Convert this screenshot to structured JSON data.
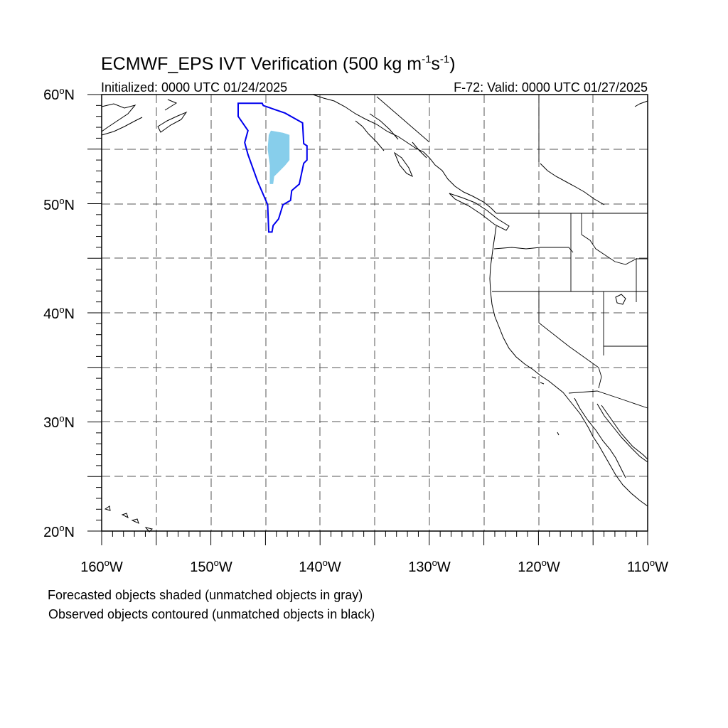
{
  "title": {
    "prefix": "ECMWF_EPS IVT Verification (500 kg m",
    "exp1": "-1",
    "middle": "s",
    "exp2": "-1",
    "suffix": ")"
  },
  "subtitle_left": "Initialized: 0000 UTC 01/24/2025",
  "subtitle_right": "F-72: Valid: 0000 UTC 01/27/2025",
  "lat_labels": [
    "60",
    "50",
    "40",
    "30",
    "20"
  ],
  "lat_suffix": "N",
  "lon_labels": [
    "160",
    "150",
    "140",
    "130",
    "120",
    "110"
  ],
  "lon_suffix": "W",
  "degree_symbol": "o",
  "caption_line1": "Forecasted objects shaded (unmatched objects in gray)",
  "caption_line2": "Observed objects contoured (unmatched objects in black)",
  "map_extent": {
    "lon": [
      -160,
      -110
    ],
    "lat": [
      20,
      60
    ],
    "grid_spacing_deg": 5
  },
  "colors": {
    "forecast_object_matched": "#87ceeb",
    "observed_object_matched": "#0000ee",
    "coastline": "#000000",
    "grid": "#555555"
  },
  "observed_object": {
    "status": "matched",
    "outline_lonlat": [
      [
        -147.5,
        59.2
      ],
      [
        -145.3,
        59.2
      ],
      [
        -145.2,
        59.0
      ],
      [
        -143.2,
        58.3
      ],
      [
        -141.6,
        57.4
      ],
      [
        -141.5,
        55.5
      ],
      [
        -141.2,
        55.3
      ],
      [
        -141.2,
        54.0
      ],
      [
        -141.5,
        53.7
      ],
      [
        -141.9,
        51.8
      ],
      [
        -142.6,
        51.2
      ],
      [
        -142.7,
        50.3
      ],
      [
        -143.4,
        49.9
      ],
      [
        -143.8,
        48.6
      ],
      [
        -144.3,
        48.0
      ],
      [
        -144.4,
        47.4
      ],
      [
        -144.7,
        47.4
      ],
      [
        -144.8,
        49.9
      ],
      [
        -145.7,
        52.0
      ],
      [
        -146.6,
        54.5
      ],
      [
        -146.9,
        55.6
      ],
      [
        -146.6,
        56.7
      ],
      [
        -147.5,
        58.0
      ],
      [
        -147.5,
        59.2
      ]
    ]
  },
  "forecast_object": {
    "status": "matched",
    "outline_lonlat": [
      [
        -144.5,
        56.7
      ],
      [
        -143.4,
        56.5
      ],
      [
        -142.8,
        56.3
      ],
      [
        -142.8,
        54.0
      ],
      [
        -143.2,
        53.5
      ],
      [
        -143.7,
        53.0
      ],
      [
        -144.2,
        52.5
      ],
      [
        -144.3,
        51.8
      ],
      [
        -144.6,
        51.8
      ],
      [
        -144.6,
        53.5
      ],
      [
        -144.8,
        55.0
      ],
      [
        -144.7,
        56.3
      ],
      [
        -144.5,
        56.7
      ]
    ]
  }
}
